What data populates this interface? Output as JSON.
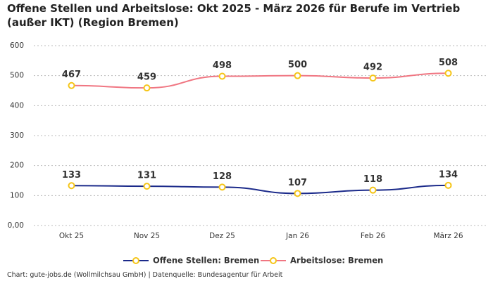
{
  "chart_data": {
    "type": "line",
    "title": "Offene Stellen und Arbeitslose: Okt 2025 - März 2026 für Berufe im Vertrieb (außer IKT) (Region Bremen)",
    "categories": [
      "Okt 25",
      "Nov 25",
      "Dez 25",
      "Jan 26",
      "Feb 26",
      "März 26"
    ],
    "series": [
      {
        "name": "Offene Stellen: Bremen",
        "color": "#1b2a8a",
        "values": [
          133,
          131,
          128,
          107,
          118,
          134
        ]
      },
      {
        "name": "Arbeitslose: Bremen",
        "color": "#f07682",
        "values": [
          467,
          459,
          498,
          500,
          492,
          508
        ]
      }
    ],
    "marker_color": "#f5c518",
    "ylim": [
      0,
      600
    ],
    "yticks": [
      {
        "value": 0,
        "label": "0,00"
      },
      100,
      200,
      300,
      400,
      500,
      600
    ],
    "grid": true,
    "source": "Chart: gute-jobs.de (Wollmilchsau GmbH) | Datenquelle: Bundesagentur für Arbeit"
  }
}
